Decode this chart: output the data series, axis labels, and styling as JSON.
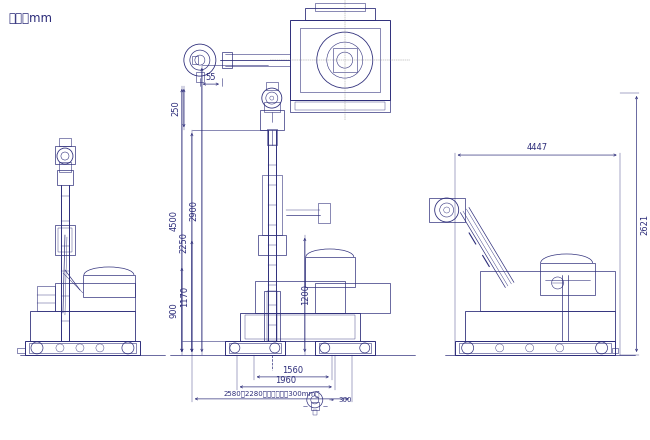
{
  "bg_color": "#ffffff",
  "line_color": "#2d2d7a",
  "dim_color": "#2d2d7a",
  "title_text": "単位：mm",
  "title_fontsize": 8.5,
  "dim_fontsize": 6.0,
  "label_55": "55",
  "label_4500": "4500",
  "label_2250": "2250",
  "label_2900": "2900",
  "label_900": "900",
  "label_1170": "1170",
  "label_250": "250",
  "label_1200": "1200",
  "label_1560": "1560",
  "label_1960": "1960",
  "label_wide": "2580～2280（ストローク300mm）",
  "label_4447": "4447",
  "label_2621": "2621",
  "label_300": "300"
}
